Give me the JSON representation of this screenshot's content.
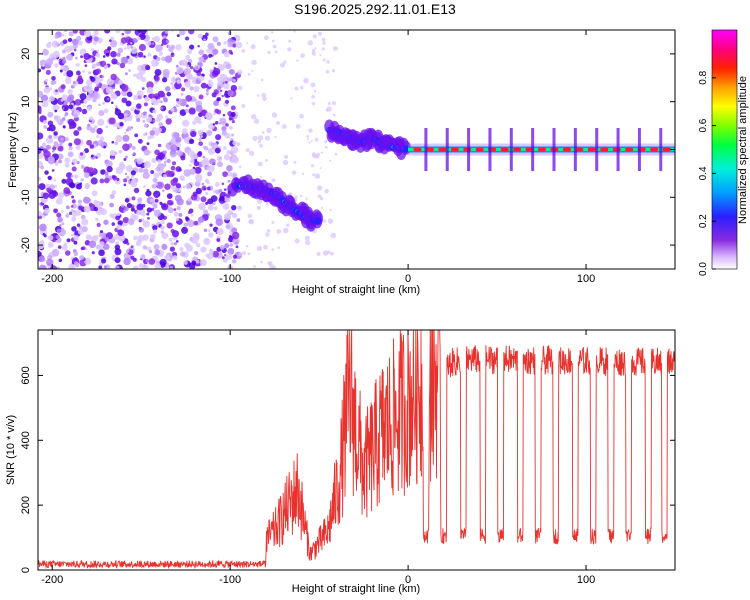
{
  "figure_title": "S196.2025.292.11.01.E13",
  "chart_data": [
    {
      "type": "heatmap",
      "title": "",
      "xlabel": "Height of straight line (km)",
      "ylabel": "Frequency (Hz)",
      "xlim": [
        -208,
        150
      ],
      "ylim": [
        -25,
        25
      ],
      "xticks": [
        -200,
        -100,
        0,
        100
      ],
      "yticks": [
        -20,
        -10,
        0,
        10,
        20
      ],
      "colorbar": {
        "label": "Normalized spectral amplitude",
        "range": [
          0,
          1
        ],
        "ticks": [
          "0.0",
          "0.2",
          "0.4",
          "0.6",
          "0.8"
        ],
        "ticks_values": [
          0.0,
          0.2,
          0.4,
          0.6,
          0.8
        ]
      },
      "noise_region_x": [
        -208,
        -95
      ],
      "descending_track": [
        {
          "x": -97,
          "y": -7.5
        },
        {
          "x": -88,
          "y": -7.8
        },
        {
          "x": -80,
          "y": -8.5
        },
        {
          "x": -74,
          "y": -9.5
        },
        {
          "x": -68,
          "y": -11.5
        },
        {
          "x": -62,
          "y": -13
        },
        {
          "x": -56,
          "y": -14.5
        },
        {
          "x": -50,
          "y": -15
        }
      ],
      "rising_track": [
        {
          "x": -44,
          "y": 4
        },
        {
          "x": -38,
          "y": 3.5
        },
        {
          "x": -32,
          "y": 2.5
        },
        {
          "x": -26,
          "y": 1.5
        },
        {
          "x": -20,
          "y": 2.5
        },
        {
          "x": -14,
          "y": 1
        },
        {
          "x": -8,
          "y": 0.5
        },
        {
          "x": 0,
          "y": 0
        }
      ],
      "steady_line": {
        "x_start": 0,
        "x_end": 150,
        "y": 0
      },
      "steady_peaks_x": [
        10,
        22,
        34,
        46,
        58,
        70,
        82,
        94,
        106,
        118,
        130,
        142
      ]
    },
    {
      "type": "line",
      "title": "",
      "xlabel": "Height of straight line (km)",
      "ylabel": "SNR (10 * v/v)",
      "xlim": [
        -208,
        150
      ],
      "ylim": [
        0,
        740
      ],
      "xticks": [
        -200,
        -100,
        0,
        100
      ],
      "yticks": [
        0,
        200,
        400,
        600
      ],
      "series": [
        {
          "name": "SNR",
          "color": "#e8322d",
          "envelope": [
            {
              "x": -208,
              "y": 20
            },
            {
              "x": -120,
              "y": 22
            },
            {
              "x": -90,
              "y": 40
            },
            {
              "x": -75,
              "y": 120
            },
            {
              "x": -62,
              "y": 250
            },
            {
              "x": -55,
              "y": 50
            },
            {
              "x": -45,
              "y": 120
            },
            {
              "x": -38,
              "y": 300
            },
            {
              "x": -33,
              "y": 550
            },
            {
              "x": -25,
              "y": 300
            },
            {
              "x": -15,
              "y": 420
            },
            {
              "x": -5,
              "y": 480
            },
            {
              "x": 5,
              "y": 570
            },
            {
              "x": 15,
              "y": 600
            },
            {
              "x": 25,
              "y": 640
            },
            {
              "x": 35,
              "y": 650
            },
            {
              "x": 150,
              "y": 640
            }
          ],
          "dips_x": [
            10,
            20,
            31,
            42,
            52,
            63,
            73,
            83,
            94,
            104,
            114,
            124,
            135,
            144
          ]
        }
      ]
    }
  ]
}
